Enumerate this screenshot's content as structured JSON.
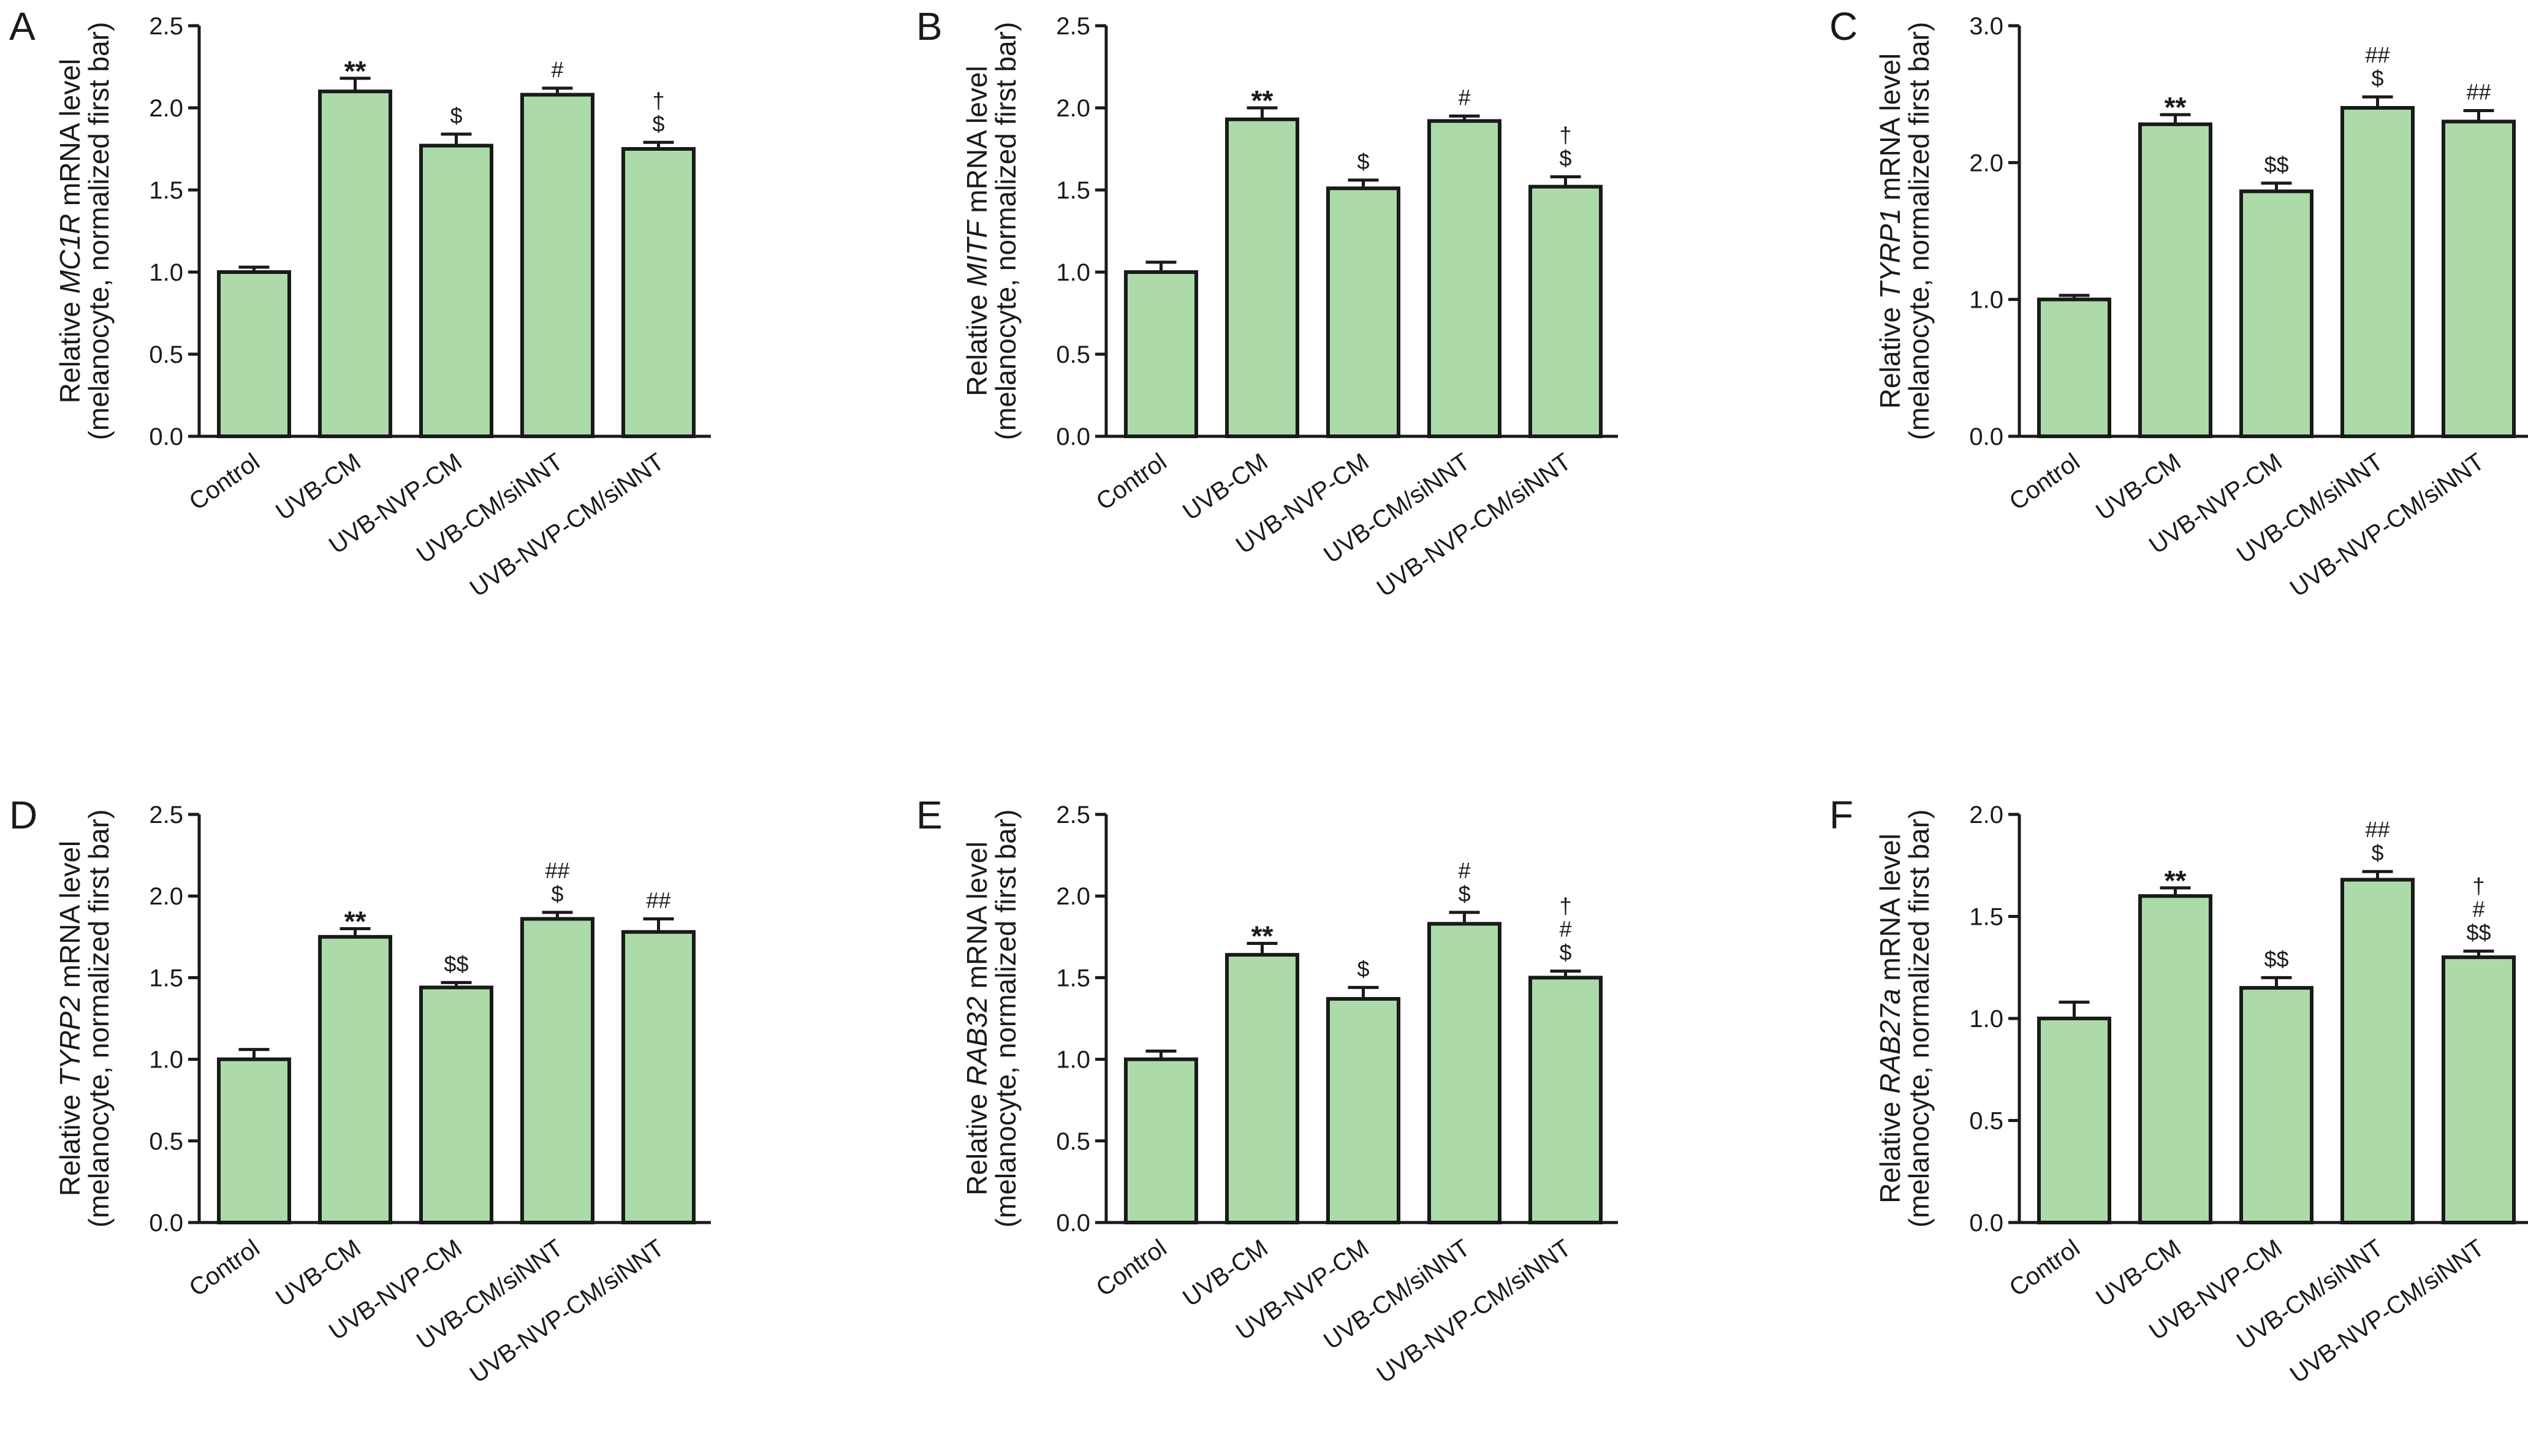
{
  "colors": {
    "bar_fill": "#acdba9",
    "stroke": "#1a1a1a"
  },
  "chart_data": [
    {
      "type": "bar",
      "panel": "A",
      "categories": [
        "Control",
        "UVB-CM",
        "UVB-NVP-CM",
        "UVB-CM/siNNT",
        "UVB-NVP-CM/siNNT"
      ],
      "values": [
        1.0,
        2.1,
        1.77,
        2.08,
        1.75
      ],
      "errors": [
        0.03,
        0.08,
        0.07,
        0.04,
        0.04
      ],
      "annotations": [
        [],
        [
          "**"
        ],
        [
          "$"
        ],
        [
          "#"
        ],
        [
          "$",
          "†"
        ]
      ],
      "ylabel": {
        "prefix": "Relative ",
        "gene": "MC1R",
        "suffix": " mRNA level",
        "line2": "(melanocyte, normalized first bar)"
      },
      "ylim": [
        0,
        2.5
      ],
      "yticks": [
        "0.0",
        "0.5",
        "1.0",
        "1.5",
        "2.0",
        "2.5"
      ]
    },
    {
      "type": "bar",
      "panel": "B",
      "categories": [
        "Control",
        "UVB-CM",
        "UVB-NVP-CM",
        "UVB-CM/siNNT",
        "UVB-NVP-CM/siNNT"
      ],
      "values": [
        1.0,
        1.93,
        1.51,
        1.92,
        1.52
      ],
      "errors": [
        0.06,
        0.07,
        0.05,
        0.03,
        0.06
      ],
      "annotations": [
        [],
        [
          "**"
        ],
        [
          "$"
        ],
        [
          "#"
        ],
        [
          "$",
          "†"
        ]
      ],
      "ylabel": {
        "prefix": "Relative ",
        "gene": "MITF",
        "suffix": " mRNA level",
        "line2": "(melanocyte, normalized first bar)"
      },
      "ylim": [
        0,
        2.5
      ],
      "yticks": [
        "0.0",
        "0.5",
        "1.0",
        "1.5",
        "2.0",
        "2.5"
      ]
    },
    {
      "type": "bar",
      "panel": "C",
      "categories": [
        "Control",
        "UVB-CM",
        "UVB-NVP-CM",
        "UVB-CM/siNNT",
        "UVB-NVP-CM/siNNT"
      ],
      "values": [
        1.0,
        2.28,
        1.79,
        2.4,
        2.3
      ],
      "errors": [
        0.03,
        0.07,
        0.06,
        0.08,
        0.08
      ],
      "annotations": [
        [],
        [
          "**"
        ],
        [
          "$$"
        ],
        [
          "$",
          "##"
        ],
        [
          "##"
        ]
      ],
      "ylabel": {
        "prefix": "Relative ",
        "gene": "TYRP1",
        "suffix": " mRNA level",
        "line2": "(melanocyte, normalized first bar)"
      },
      "ylim": [
        0,
        3.0
      ],
      "yticks": [
        "0.0",
        "1.0",
        "2.0",
        "3.0"
      ]
    },
    {
      "type": "bar",
      "panel": "D",
      "categories": [
        "Control",
        "UVB-CM",
        "UVB-NVP-CM",
        "UVB-CM/siNNT",
        "UVB-NVP-CM/siNNT"
      ],
      "values": [
        1.0,
        1.75,
        1.44,
        1.86,
        1.78
      ],
      "errors": [
        0.06,
        0.05,
        0.03,
        0.04,
        0.08
      ],
      "annotations": [
        [],
        [
          "**"
        ],
        [
          "$$"
        ],
        [
          "$",
          "##"
        ],
        [
          "##"
        ]
      ],
      "ylabel": {
        "prefix": "Relative ",
        "gene": "TYRP2",
        "suffix": " mRNA level",
        "line2": "(melanocyte, normalized first bar)"
      },
      "ylim": [
        0,
        2.5
      ],
      "yticks": [
        "0.0",
        "0.5",
        "1.0",
        "1.5",
        "2.0",
        "2.5"
      ]
    },
    {
      "type": "bar",
      "panel": "E",
      "categories": [
        "Control",
        "UVB-CM",
        "UVB-NVP-CM",
        "UVB-CM/siNNT",
        "UVB-NVP-CM/siNNT"
      ],
      "values": [
        1.0,
        1.64,
        1.37,
        1.83,
        1.5
      ],
      "errors": [
        0.05,
        0.07,
        0.07,
        0.07,
        0.04
      ],
      "annotations": [
        [],
        [
          "**"
        ],
        [
          "$"
        ],
        [
          "$",
          "#"
        ],
        [
          "$",
          "#",
          "†"
        ]
      ],
      "ylabel": {
        "prefix": "Relative ",
        "gene": "RAB32",
        "suffix": " mRNA level",
        "line2": "(melanocyte, normalized first bar)"
      },
      "ylim": [
        0,
        2.5
      ],
      "yticks": [
        "0.0",
        "0.5",
        "1.0",
        "1.5",
        "2.0",
        "2.5"
      ]
    },
    {
      "type": "bar",
      "panel": "F",
      "categories": [
        "Control",
        "UVB-CM",
        "UVB-NVP-CM",
        "UVB-CM/siNNT",
        "UVB-NVP-CM/siNNT"
      ],
      "values": [
        1.0,
        1.6,
        1.15,
        1.68,
        1.3
      ],
      "errors": [
        0.08,
        0.04,
        0.05,
        0.04,
        0.03
      ],
      "annotations": [
        [],
        [
          "**"
        ],
        [
          "$$"
        ],
        [
          "$",
          "##"
        ],
        [
          "$$",
          "#",
          "†"
        ]
      ],
      "ylabel": {
        "prefix": "Relative ",
        "gene": "RAB27a",
        "suffix": " mRNA level",
        "line2": "(melanocyte, normalized first bar)"
      },
      "ylim": [
        0,
        2.0
      ],
      "yticks": [
        "0.0",
        "0.5",
        "1.0",
        "1.5",
        "2.0"
      ]
    }
  ]
}
